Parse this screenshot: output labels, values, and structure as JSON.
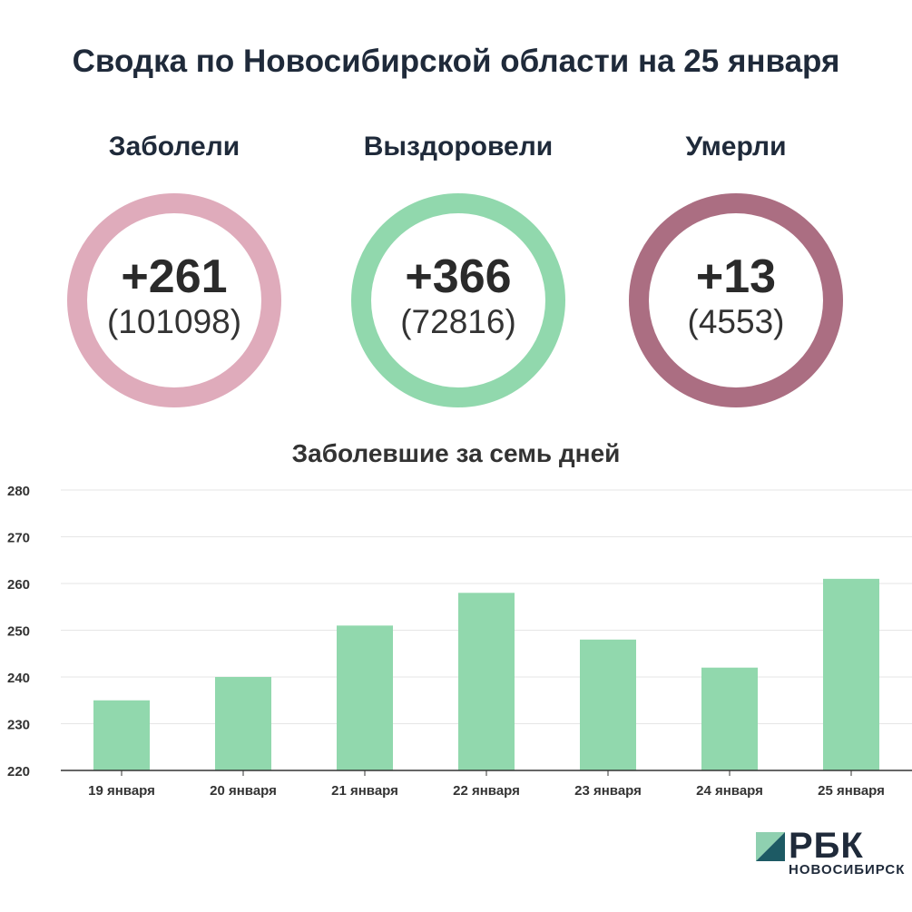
{
  "title": "Сводка по Новосибирской области на 25 января",
  "stats": [
    {
      "label": "Заболели",
      "delta": "+261",
      "total": "(101098)",
      "color": "#dfabbb"
    },
    {
      "label": "Выздоровели",
      "delta": "+366",
      "total": "(72816)",
      "color": "#91d8ad"
    },
    {
      "label": "Умерли",
      "delta": "+13",
      "total": "(4553)",
      "color": "#ab6e82"
    }
  ],
  "chart_title": "Заболевшие за семь дней",
  "chart_data": {
    "type": "bar",
    "title": "Заболевшие за семь дней",
    "categories": [
      "19 января",
      "20 января",
      "21 января",
      "22 января",
      "23 января",
      "24 января",
      "25 января"
    ],
    "values": [
      235,
      240,
      251,
      258,
      248,
      242,
      261
    ],
    "ylim": [
      220,
      280
    ],
    "yticks": [
      "220",
      "230",
      "240",
      "250",
      "260",
      "270",
      "280"
    ],
    "grid": true,
    "bar_color": "#91d8ad"
  },
  "logo": {
    "name": "РБК",
    "city": "НОВОСИБИРСК"
  }
}
